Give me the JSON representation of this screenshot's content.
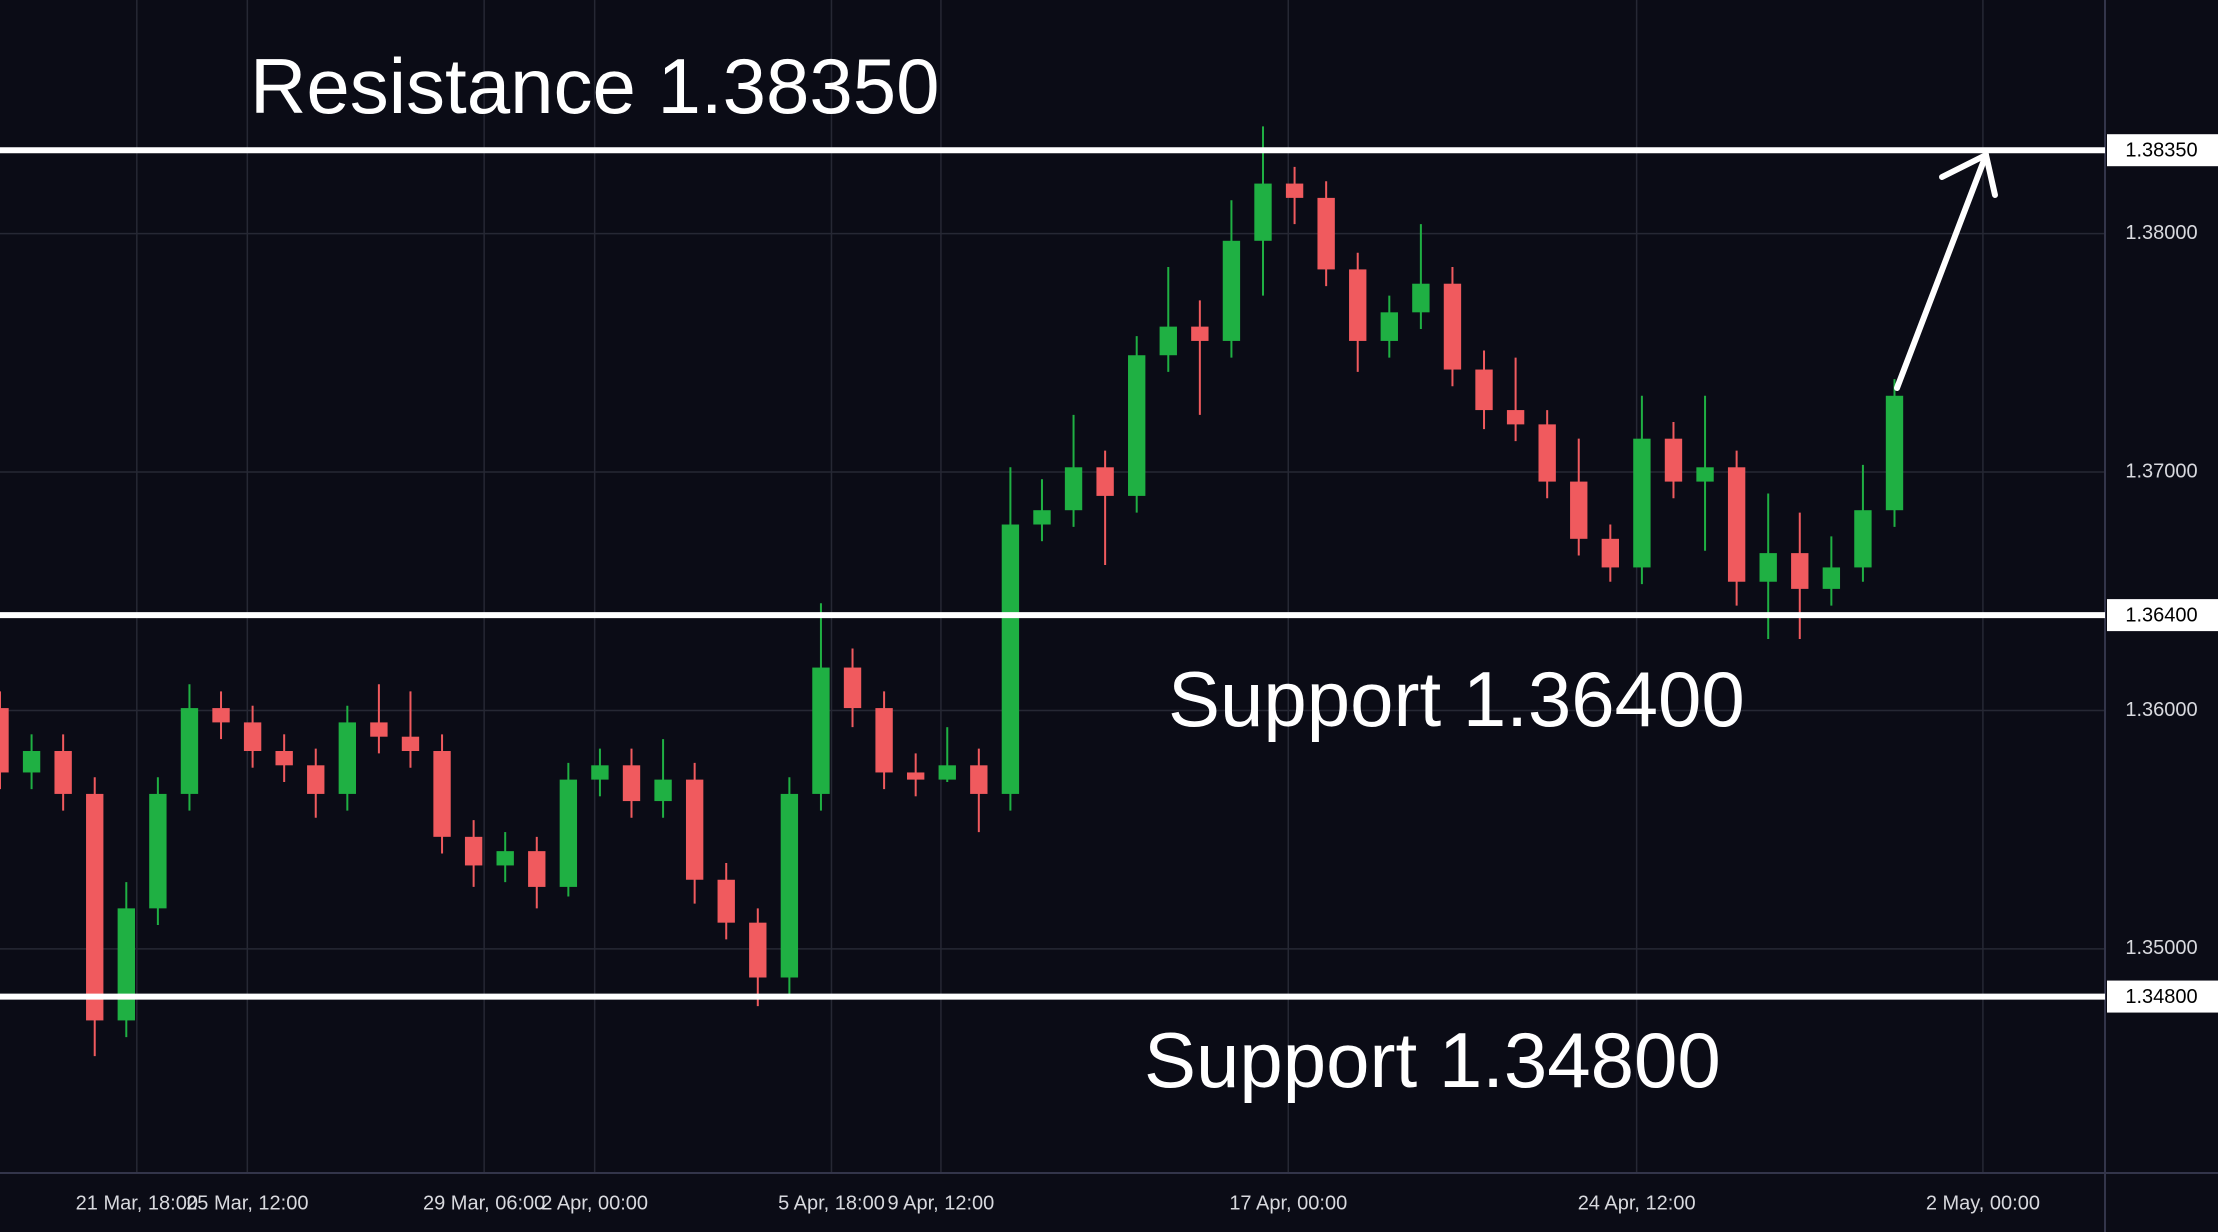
{
  "chart_data": {
    "type": "candlestick",
    "x": [
      0,
      3,
      6,
      9,
      12,
      15,
      18,
      21,
      24,
      27,
      30,
      33,
      36,
      39,
      42,
      45,
      48,
      51,
      54,
      57,
      60,
      63,
      66,
      69,
      72,
      75,
      78,
      81,
      84,
      87,
      90,
      93,
      96,
      99,
      102,
      105,
      108,
      111,
      114,
      117,
      120,
      123,
      126,
      129,
      132,
      135,
      138,
      141,
      144,
      147,
      150,
      153,
      156,
      159,
      162,
      165,
      168,
      171,
      174,
      177,
      180
    ],
    "open": [
      1.3601,
      1.3574,
      1.3583,
      1.3565,
      1.347,
      1.3517,
      1.3565,
      1.3601,
      1.3595,
      1.3583,
      1.3577,
      1.3565,
      1.3595,
      1.3589,
      1.3583,
      1.3547,
      1.3535,
      1.3541,
      1.3526,
      1.3571,
      1.3577,
      1.3562,
      1.3571,
      1.3529,
      1.3511,
      1.3488,
      1.3565,
      1.3618,
      1.3601,
      1.3574,
      1.3571,
      1.3577,
      1.3565,
      1.3678,
      1.3684,
      1.3702,
      1.369,
      1.3749,
      1.3761,
      1.3755,
      1.3797,
      1.3821,
      1.3815,
      1.3785,
      1.3755,
      1.3767,
      1.3779,
      1.3743,
      1.3726,
      1.372,
      1.3696,
      1.3672,
      1.366,
      1.3714,
      1.3696,
      1.3702,
      1.3654,
      1.3666,
      1.3651,
      1.366,
      1.3684
    ],
    "high": [
      1.3608,
      1.359,
      1.359,
      1.3572,
      1.3528,
      1.3572,
      1.3611,
      1.3608,
      1.3602,
      1.359,
      1.3584,
      1.3602,
      1.3611,
      1.3608,
      1.359,
      1.3554,
      1.3549,
      1.3547,
      1.3578,
      1.3584,
      1.3584,
      1.3588,
      1.3578,
      1.3536,
      1.3517,
      1.3572,
      1.3645,
      1.3626,
      1.3608,
      1.3582,
      1.3593,
      1.3584,
      1.3702,
      1.3697,
      1.3724,
      1.3709,
      1.3757,
      1.3786,
      1.3772,
      1.3814,
      1.3845,
      1.3828,
      1.3822,
      1.3792,
      1.3774,
      1.3804,
      1.3786,
      1.3751,
      1.3748,
      1.3726,
      1.3714,
      1.3678,
      1.3732,
      1.3721,
      1.3732,
      1.3709,
      1.3691,
      1.3683,
      1.3673,
      1.3703,
      1.3739
    ],
    "low": [
      1.3567,
      1.3567,
      1.3558,
      1.3455,
      1.3463,
      1.351,
      1.3558,
      1.3588,
      1.3576,
      1.357,
      1.3555,
      1.3558,
      1.3582,
      1.3576,
      1.354,
      1.3526,
      1.3528,
      1.3517,
      1.3522,
      1.3564,
      1.3555,
      1.3555,
      1.3519,
      1.3504,
      1.3476,
      1.348,
      1.3558,
      1.3593,
      1.3567,
      1.3564,
      1.357,
      1.3549,
      1.3558,
      1.3671,
      1.3677,
      1.3661,
      1.3683,
      1.3742,
      1.3724,
      1.3748,
      1.3774,
      1.3804,
      1.3778,
      1.3742,
      1.3748,
      1.376,
      1.3736,
      1.3718,
      1.3713,
      1.3689,
      1.3665,
      1.3654,
      1.3653,
      1.3689,
      1.3667,
      1.3644,
      1.363,
      1.363,
      1.3644,
      1.3654,
      1.3677
    ],
    "close": [
      1.3574,
      1.3583,
      1.3565,
      1.347,
      1.3517,
      1.3565,
      1.3601,
      1.3595,
      1.3583,
      1.3577,
      1.3565,
      1.3595,
      1.3589,
      1.3583,
      1.3547,
      1.3535,
      1.3541,
      1.3526,
      1.3571,
      1.3577,
      1.3562,
      1.3571,
      1.3529,
      1.3511,
      1.3488,
      1.3565,
      1.3618,
      1.3601,
      1.3574,
      1.3571,
      1.3577,
      1.3565,
      1.3678,
      1.3684,
      1.3702,
      1.369,
      1.3749,
      1.3761,
      1.3755,
      1.3797,
      1.3821,
      1.3815,
      1.3785,
      1.3755,
      1.3767,
      1.3779,
      1.3743,
      1.3726,
      1.372,
      1.3696,
      1.3672,
      1.366,
      1.3714,
      1.3696,
      1.3702,
      1.3654,
      1.3666,
      1.3651,
      1.366,
      1.3684,
      1.3732
    ],
    "up_color": "#1fb043",
    "down_color": "#f05a5e",
    "xlim": [
      0,
      200
    ],
    "xticks": [
      {
        "value": 13,
        "label": "21 Mar, 18:00"
      },
      {
        "value": 23.5,
        "label": "25 Mar, 12:00"
      },
      {
        "value": 46,
        "label": "29 Mar, 06:00"
      },
      {
        "value": 56.5,
        "label": "2 Apr, 00:00"
      },
      {
        "value": 79,
        "label": "5 Apr, 18:00"
      },
      {
        "value": 89.4,
        "label": "9 Apr, 12:00"
      },
      {
        "value": 122.4,
        "label": "17 Apr, 00:00"
      },
      {
        "value": 155.5,
        "label": "24 Apr, 12:00"
      },
      {
        "value": 188.4,
        "label": "2 May, 00:00"
      }
    ],
    "ylim": [
      1.3406,
      1.3898
    ],
    "yticks": [
      {
        "value": 1.35,
        "label": "1.35000"
      },
      {
        "value": 1.36,
        "label": "1.36000"
      },
      {
        "value": 1.37,
        "label": "1.37000"
      },
      {
        "value": 1.38,
        "label": "1.38000"
      }
    ],
    "grid": true,
    "levels": [
      {
        "value": 1.3835,
        "label": "1.38350",
        "annotation": "Resistance 1.38350"
      },
      {
        "value": 1.364,
        "label": "1.36400",
        "annotation": "Support 1.36400"
      },
      {
        "value": 1.348,
        "label": "1.34800",
        "annotation": "Support 1.34800"
      }
    ]
  }
}
